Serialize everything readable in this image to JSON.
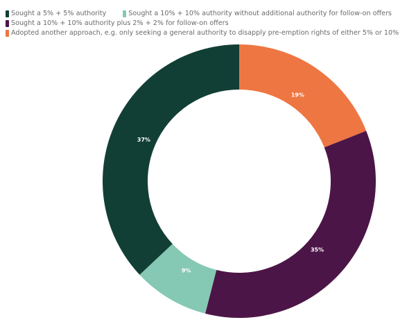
{
  "chart_data": {
    "type": "pie",
    "variant": "donut",
    "title": "",
    "legend_position": "top-left",
    "categories": [
      "Sought a 5% + 5% authority",
      "Sought a 10% + 10% authority without additional authority for follow-on offers",
      "Sought a 10% + 10% authority plus 2% + 2% for follow-on offers",
      "Adopted another approach, e.g. only seeking a general authority to disapply pre-emption rights of either 5% or 10%"
    ],
    "values": [
      37,
      9,
      35,
      19
    ],
    "data_labels": [
      "37%",
      "9%",
      "35%",
      "19%"
    ],
    "colors": [
      "#123f35",
      "#85c8b3",
      "#4c1547",
      "#ee7642"
    ]
  }
}
